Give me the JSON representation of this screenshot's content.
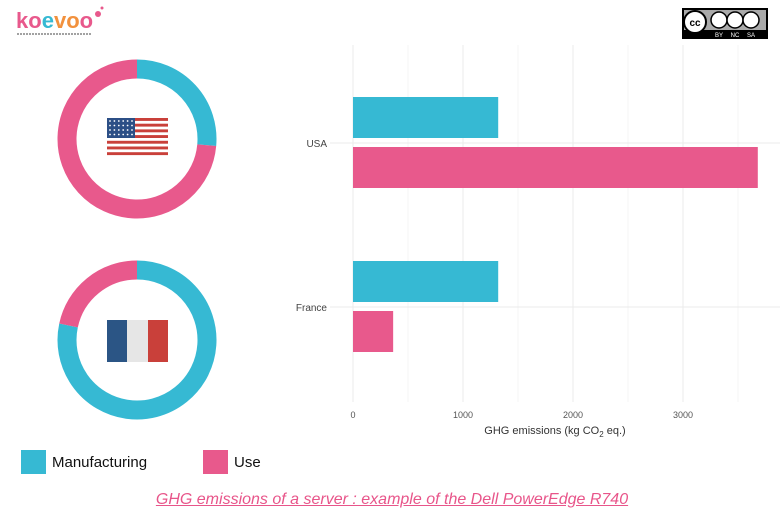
{
  "logo": {
    "text": "koevoo"
  },
  "license": {
    "text": "CC BY NC SA"
  },
  "colors": {
    "manufacturing": "#36b9d3",
    "use": "#e8598c"
  },
  "legend": [
    {
      "label": "Manufacturing",
      "color": "#36b9d3"
    },
    {
      "label": "Use",
      "color": "#e8598c"
    }
  ],
  "caption": "GHG emissions of a server : example of the Dell PowerEdge R740",
  "chart_data": [
    {
      "type": "bar",
      "orientation": "horizontal",
      "categories": [
        "USA",
        "France"
      ],
      "series": [
        {
          "name": "Manufacturing",
          "values": [
            1320,
            1320
          ]
        },
        {
          "name": "Use",
          "values": [
            3680,
            365
          ]
        }
      ],
      "xlabel": "GHG emissions (kg CO2 eq.)",
      "xticks": [
        0,
        1000,
        2000,
        3000
      ],
      "xlim": [
        -200,
        3900
      ],
      "grid": true
    },
    {
      "type": "pie",
      "variant": "donut",
      "country": "USA",
      "icon": "usa-flag",
      "slices": [
        {
          "name": "Manufacturing",
          "value": 1320
        },
        {
          "name": "Use",
          "value": 3680
        }
      ]
    },
    {
      "type": "pie",
      "variant": "donut",
      "country": "France",
      "icon": "france-flag",
      "slices": [
        {
          "name": "Manufacturing",
          "value": 1320
        },
        {
          "name": "Use",
          "value": 365
        }
      ]
    }
  ]
}
